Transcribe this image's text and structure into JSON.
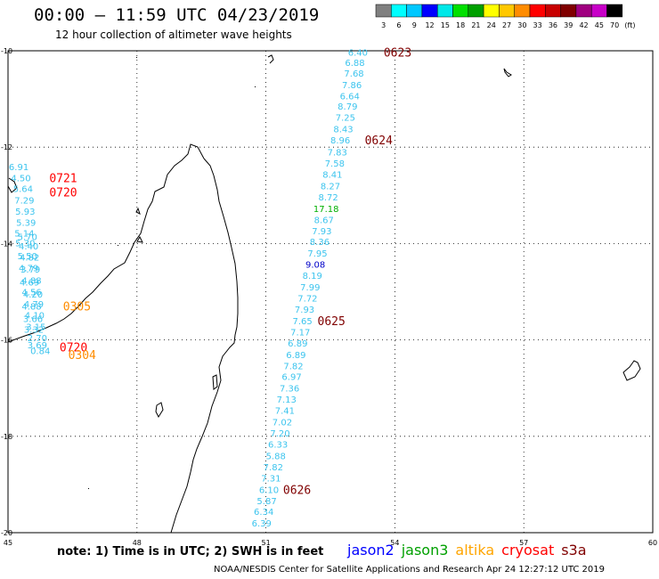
{
  "header": {
    "title": "00:00 – 11:59 UTC 04/23/2019",
    "subtitle": "12 hour collection of altimeter wave heights"
  },
  "color_scale": {
    "labels": [
      "3",
      "6",
      "9",
      "12",
      "15",
      "18",
      "21",
      "24",
      "27",
      "30",
      "33",
      "36",
      "39",
      "42",
      "45",
      "70",
      "(ft)"
    ],
    "colors": [
      "#808080",
      "#00ffff",
      "#00c8ff",
      "#0000ff",
      "#00e8e8",
      "#00e000",
      "#00a000",
      "#ffff00",
      "#ffc800",
      "#ff8c00",
      "#ff0000",
      "#c80000",
      "#800000",
      "#a00080",
      "#c800c8",
      "#000000"
    ]
  },
  "map": {
    "lon_labels": [
      "45",
      "48",
      "51",
      "54",
      "57",
      "60"
    ],
    "lat_labels": [
      "-10",
      "-12",
      "-14",
      "-16",
      "-18",
      "-20"
    ],
    "lon_range": [
      45,
      60
    ],
    "lat_range": [
      -20,
      -10
    ],
    "grid": true
  },
  "chart_data": {
    "type": "scatter",
    "title": "00:00 – 11:59 UTC 04/23/2019",
    "subtitle": "12 hour collection of altimeter wave heights",
    "xlabel": "",
    "ylabel": "",
    "xlim": [
      45,
      60
    ],
    "ylim": [
      -20,
      -10
    ],
    "units": "ft",
    "tracks": [
      {
        "color": "#3cc4ee",
        "points": [
          {
            "lon": 53.14,
            "lat": -10.03,
            "value": "6.40"
          },
          {
            "lon": 53.07,
            "lat": -10.24,
            "value": "6.88"
          },
          {
            "lon": 53.05,
            "lat": -10.46,
            "value": "7.68"
          },
          {
            "lon": 53.0,
            "lat": -10.7,
            "value": "7.86"
          },
          {
            "lon": 52.95,
            "lat": -10.93,
            "value": "6.64"
          },
          {
            "lon": 52.9,
            "lat": -11.15,
            "value": "8.79"
          },
          {
            "lon": 52.85,
            "lat": -11.38,
            "value": "7.25"
          },
          {
            "lon": 52.8,
            "lat": -11.62,
            "value": "8.43"
          },
          {
            "lon": 52.73,
            "lat": -11.85,
            "value": "8.96"
          },
          {
            "lon": 52.66,
            "lat": -12.1,
            "value": "7.83"
          },
          {
            "lon": 52.6,
            "lat": -12.33,
            "value": "7.58"
          },
          {
            "lon": 52.55,
            "lat": -12.56,
            "value": "8.41"
          },
          {
            "lon": 52.5,
            "lat": -12.8,
            "value": "8.27"
          },
          {
            "lon": 52.45,
            "lat": -13.03,
            "value": "8.72"
          },
          {
            "lon": 52.4,
            "lat": -13.27,
            "value": "17.18",
            "color": "#00b000"
          },
          {
            "lon": 52.35,
            "lat": -13.5,
            "value": "8.67"
          },
          {
            "lon": 52.3,
            "lat": -13.73,
            "value": "7.93"
          },
          {
            "lon": 52.25,
            "lat": -13.96,
            "value": "8.36"
          },
          {
            "lon": 52.2,
            "lat": -14.2,
            "value": "7.95"
          },
          {
            "lon": 52.15,
            "lat": -14.43,
            "value": "9.08",
            "color": "#0000c8"
          },
          {
            "lon": 52.08,
            "lat": -14.66,
            "value": "8.19"
          },
          {
            "lon": 52.03,
            "lat": -14.9,
            "value": "7.99"
          },
          {
            "lon": 51.97,
            "lat": -15.13,
            "value": "7.72"
          },
          {
            "lon": 51.9,
            "lat": -15.36,
            "value": "7.93"
          },
          {
            "lon": 51.85,
            "lat": -15.6,
            "value": "7.65"
          },
          {
            "lon": 51.8,
            "lat": -15.83,
            "value": "7.17"
          },
          {
            "lon": 51.74,
            "lat": -16.06,
            "value": "6.89"
          },
          {
            "lon": 51.7,
            "lat": -16.3,
            "value": "6.89"
          },
          {
            "lon": 51.64,
            "lat": -16.53,
            "value": "7.82"
          },
          {
            "lon": 51.6,
            "lat": -16.76,
            "value": "6.97"
          },
          {
            "lon": 51.55,
            "lat": -17.0,
            "value": "7.36"
          },
          {
            "lon": 51.48,
            "lat": -17.23,
            "value": "7.13"
          },
          {
            "lon": 51.44,
            "lat": -17.46,
            "value": "7.41"
          },
          {
            "lon": 51.38,
            "lat": -17.7,
            "value": "7.02"
          },
          {
            "lon": 51.33,
            "lat": -17.93,
            "value": "7.20"
          },
          {
            "lon": 51.28,
            "lat": -18.16,
            "value": "6.33"
          },
          {
            "lon": 51.23,
            "lat": -18.4,
            "value": "5.88"
          },
          {
            "lon": 51.17,
            "lat": -18.63,
            "value": "7.82"
          },
          {
            "lon": 51.12,
            "lat": -18.86,
            "value": "7.31"
          },
          {
            "lon": 51.07,
            "lat": -19.1,
            "value": "6.10"
          },
          {
            "lon": 51.02,
            "lat": -19.33,
            "value": "5.87"
          },
          {
            "lon": 50.95,
            "lat": -19.56,
            "value": "6.34"
          },
          {
            "lon": 50.9,
            "lat": -19.8,
            "value": "6.39"
          }
        ]
      },
      {
        "color": "#3cc4ee",
        "points": [
          {
            "lon": 45.25,
            "lat": -12.4,
            "value": "6.91"
          },
          {
            "lon": 45.3,
            "lat": -12.63,
            "value": "4.50"
          },
          {
            "lon": 45.35,
            "lat": -12.86,
            "value": "5.64"
          },
          {
            "lon": 45.38,
            "lat": -13.1,
            "value": "7.29"
          },
          {
            "lon": 45.4,
            "lat": -13.33,
            "value": "5.93"
          },
          {
            "lon": 45.42,
            "lat": -13.56,
            "value": "5.39"
          },
          {
            "lon": 45.38,
            "lat": -13.78,
            "value": "5.14"
          },
          {
            "lon": 45.45,
            "lat": -13.85,
            "value": "5.70"
          },
          {
            "lon": 45.4,
            "lat": -13.98,
            "value": "5.30"
          },
          {
            "lon": 45.48,
            "lat": -14.05,
            "value": "4.40"
          },
          {
            "lon": 45.45,
            "lat": -14.25,
            "value": "5.50"
          },
          {
            "lon": 45.5,
            "lat": -14.28,
            "value": "4.82"
          },
          {
            "lon": 45.48,
            "lat": -14.5,
            "value": "4.79"
          },
          {
            "lon": 45.52,
            "lat": -14.53,
            "value": "3.79"
          },
          {
            "lon": 45.55,
            "lat": -14.76,
            "value": "4.88"
          },
          {
            "lon": 45.5,
            "lat": -14.8,
            "value": "4.69"
          },
          {
            "lon": 45.55,
            "lat": -15.0,
            "value": "4.56"
          },
          {
            "lon": 45.58,
            "lat": -15.05,
            "value": "4.20"
          },
          {
            "lon": 45.6,
            "lat": -15.25,
            "value": "4.79"
          },
          {
            "lon": 45.55,
            "lat": -15.3,
            "value": "4.88"
          },
          {
            "lon": 45.62,
            "lat": -15.48,
            "value": "4.10"
          },
          {
            "lon": 45.58,
            "lat": -15.55,
            "value": "3.66"
          },
          {
            "lon": 45.65,
            "lat": -15.72,
            "value": "3.15"
          },
          {
            "lon": 45.6,
            "lat": -15.78,
            "value": "3.32"
          },
          {
            "lon": 45.68,
            "lat": -15.95,
            "value": "2.70"
          },
          {
            "lon": 45.68,
            "lat": -16.1,
            "value": "3.69"
          },
          {
            "lon": 45.75,
            "lat": -16.22,
            "value": "0.84"
          }
        ]
      }
    ],
    "pass_labels": [
      {
        "text": "0623",
        "lon": 53.74,
        "lat": -10.03,
        "color": "#800000"
      },
      {
        "text": "0624",
        "lon": 53.3,
        "lat": -11.85,
        "color": "#800000"
      },
      {
        "text": "0625",
        "lon": 52.2,
        "lat": -15.6,
        "color": "#800000"
      },
      {
        "text": "0626",
        "lon": 51.4,
        "lat": -19.1,
        "color": "#800000"
      },
      {
        "text": "0721",
        "lon": 45.96,
        "lat": -12.63,
        "color": "#ff0000"
      },
      {
        "text": "0720",
        "lon": 45.96,
        "lat": -12.93,
        "color": "#ff0000"
      },
      {
        "text": "0305",
        "lon": 46.28,
        "lat": -15.3,
        "color": "#ff8c00"
      },
      {
        "text": "0720",
        "lon": 46.2,
        "lat": -16.15,
        "color": "#ff0000"
      },
      {
        "text": "0304",
        "lon": 46.4,
        "lat": -16.3,
        "color": "#ff8c00"
      }
    ]
  },
  "footer": {
    "note": "note:  1) Time is in UTC;  2) SWH is in feet",
    "legend": [
      {
        "name": "jason2",
        "color": "#0000ff"
      },
      {
        "name": "jason3",
        "color": "#00a000"
      },
      {
        "name": "altika",
        "color": "#ffa500"
      },
      {
        "name": "cryosat",
        "color": "#ff0000"
      },
      {
        "name": "s3a",
        "color": "#800000"
      }
    ],
    "credit": "NOAA/NESDIS Center for Satellite Applications and Research    Apr 24 12:27:12 UTC 2019"
  }
}
